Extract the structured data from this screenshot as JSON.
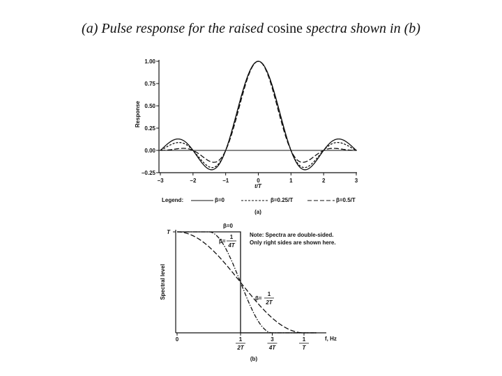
{
  "page": {
    "title_prefix": "(a)",
    "title_main": "Pulse response  for the raised",
    "title_word": "cosine",
    "title_mid": "spectra shown in",
    "title_suffix": "(b)"
  },
  "chart_data": [
    {
      "type": "line",
      "caption": "(a)",
      "xlabel": "t/T",
      "ylabel": "Response",
      "xlim": [
        -3,
        3
      ],
      "ylim": [
        -0.25,
        1.0
      ],
      "x_ticks": [
        "−3",
        "−2",
        "−1",
        "0",
        "1",
        "2",
        "3"
      ],
      "y_ticks": [
        "1.00",
        "0.75",
        "0.50",
        "0.25",
        "0.00",
        "−0.25"
      ],
      "legend": {
        "label": "Legend:",
        "entries": [
          "β=0",
          "β=0.25/T",
          "β=0.5/T"
        ]
      },
      "grid": false,
      "series": [
        {
          "name": "β=0",
          "beta": 0,
          "style": "solid",
          "x": [
            -3,
            -2.5,
            -2,
            -1.5,
            -1,
            -0.5,
            0,
            0.5,
            1,
            1.5,
            2,
            2.5,
            3
          ],
          "y": [
            0,
            0.127,
            0,
            -0.212,
            0,
            0.637,
            1.0,
            0.637,
            0,
            -0.212,
            0,
            0.127,
            0
          ]
        },
        {
          "name": "β=0.25/T",
          "beta": 0.25,
          "style": "dashed",
          "x": [
            -3,
            -2.5,
            -2,
            -1.5,
            -1,
            -0.5,
            0,
            0.5,
            1,
            1.5,
            2,
            2.5,
            3
          ],
          "y": [
            0,
            0.05,
            0,
            -0.11,
            0,
            0.61,
            1.0,
            0.61,
            0,
            -0.11,
            0,
            0.05,
            0
          ]
        },
        {
          "name": "β=0.5/T",
          "beta": 0.5,
          "style": "longdash",
          "x": [
            -3,
            -2.5,
            -2,
            -1.5,
            -1,
            -0.5,
            0,
            0.5,
            1,
            1.5,
            2,
            2.5,
            3
          ],
          "y": [
            0,
            0,
            0,
            0,
            0,
            0.5,
            1.0,
            0.5,
            0,
            0,
            0,
            0,
            0
          ]
        }
      ]
    },
    {
      "type": "line",
      "caption": "(b)",
      "xlabel": "f, Hz",
      "ylabel": "Spectral level",
      "ytick": "T",
      "xlim": [
        0,
        1.1
      ],
      "x_ticks": [
        {
          "value": 0,
          "label": "0"
        },
        {
          "value": 0.5,
          "num": "1",
          "den": "2T"
        },
        {
          "value": 0.75,
          "num": "3",
          "den": "4T"
        },
        {
          "value": 1.0,
          "num": "1",
          "den": "T"
        }
      ],
      "note": [
        "Note: Spectra are double-sided.",
        "Only right sides are shown here."
      ],
      "curve_labels": [
        {
          "text": "β=0"
        },
        {
          "prefix": "β=",
          "num": "1",
          "den": "4T"
        },
        {
          "prefix": "β=",
          "num": "1",
          "den": "2T"
        }
      ],
      "series": [
        {
          "name": "β=0",
          "beta": 0,
          "style": "solid"
        },
        {
          "name": "β=1/4T",
          "beta": 0.25,
          "style": "dashdot"
        },
        {
          "name": "β=1/2T",
          "beta": 0.5,
          "style": "longdash"
        }
      ]
    }
  ]
}
